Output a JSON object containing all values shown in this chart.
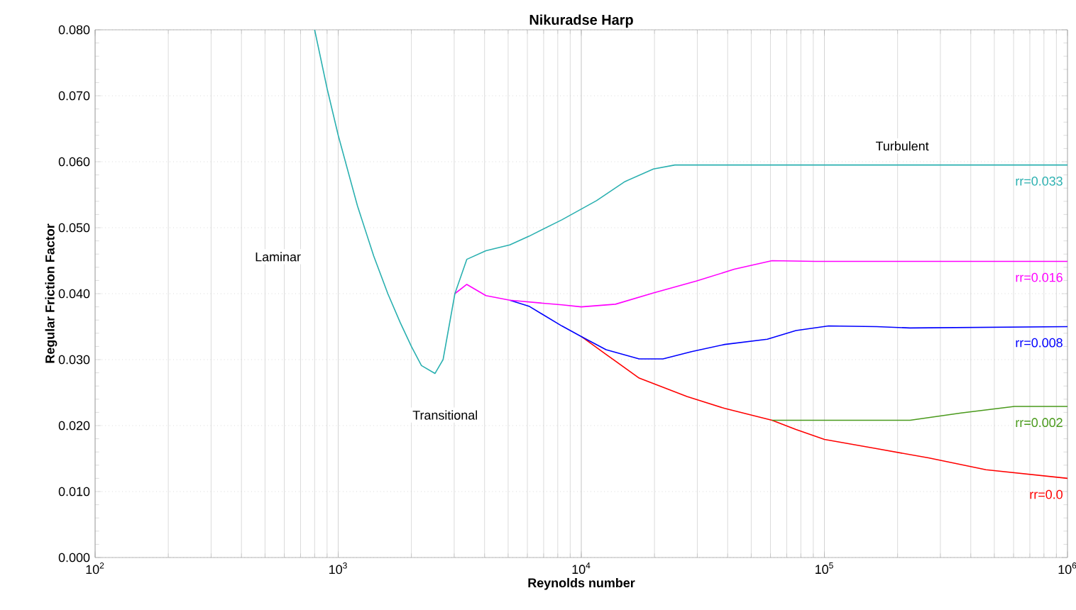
{
  "chart_data": {
    "type": "line",
    "title": "Nikuradse Harp",
    "xlabel": "Reynolds number",
    "ylabel": "Regular Friction Factor",
    "log": "x",
    "grid": true,
    "legend": false,
    "marker": "none",
    "line_style": "solid",
    "xlim": [
      100,
      1000000
    ],
    "xticks": [
      {
        "value": 100,
        "label": "10$^{2}$"
      },
      {
        "value": 1000,
        "label": "10$^{3}$"
      },
      {
        "value": 10000,
        "label": "10$^{4}$"
      },
      {
        "value": 100000,
        "label": "10$^{5}$"
      },
      {
        "value": 1000000,
        "label": "10$^{6}$"
      }
    ],
    "ylim": [
      0,
      0.08
    ],
    "yticks": [
      {
        "value": 0,
        "label": "0.000"
      },
      {
        "value": 0.01,
        "label": "0.010"
      },
      {
        "value": 0.02,
        "label": "0.020"
      },
      {
        "value": 0.03,
        "label": "0.030"
      },
      {
        "value": 0.04,
        "label": "0.040"
      },
      {
        "value": 0.05,
        "label": "0.050"
      },
      {
        "value": 0.06,
        "label": "0.060"
      },
      {
        "value": 0.07,
        "label": "0.070"
      },
      {
        "value": 0.08,
        "label": "0.080"
      }
    ],
    "annotations": [
      "Laminar",
      "Transitional",
      "Turbulent"
    ],
    "series": [
      {
        "name": "rr=0.0",
        "color": "#ff0000",
        "x": [
          10000,
          12640,
          17300,
          27200,
          38900,
          60900,
          76400,
          100000,
          164000,
          268000,
          462000,
          1000000
        ],
        "values": [
          0.0335,
          0.0308,
          0.0272,
          0.0244,
          0.0226,
          0.0208,
          0.0194,
          0.0179,
          0.0165,
          0.0151,
          0.0133,
          0.012
        ]
      },
      {
        "name": "rr=0.002",
        "color": "#4a9a1c",
        "x": [
          60900,
          83500,
          225000,
          365000,
          605000,
          1000000
        ],
        "values": [
          0.0208,
          0.0208,
          0.0208,
          0.0219,
          0.0229,
          0.0229
        ]
      },
      {
        "name": "rr=0.008",
        "color": "#0000ff",
        "x": [
          5080,
          6090,
          8320,
          10000,
          12640,
          17300,
          21680,
          28400,
          38900,
          58200,
          76400,
          104000,
          164000,
          225000,
          1000000
        ],
        "values": [
          0.039,
          0.0381,
          0.0351,
          0.0335,
          0.0315,
          0.0301,
          0.0301,
          0.0312,
          0.0323,
          0.0331,
          0.0344,
          0.0351,
          0.035,
          0.0348,
          0.035
        ]
      },
      {
        "name": "rr=0.016",
        "color": "#ff00ff",
        "x": [
          3020,
          3380,
          4050,
          5080,
          8320,
          10000,
          13820,
          19800,
          29700,
          42600,
          60900,
          91400,
          1000000
        ],
        "values": [
          0.04,
          0.0414,
          0.0397,
          0.039,
          0.0383,
          0.038,
          0.0384,
          0.0401,
          0.0419,
          0.0437,
          0.045,
          0.0449,
          0.0449
        ]
      },
      {
        "name": "rr=0.033",
        "color": "#2ab0b0",
        "x": [
          800,
          900,
          1000,
          1200,
          1400,
          1600,
          1800,
          2000,
          2200,
          2500,
          2700,
          3020,
          3380,
          4050,
          5080,
          6090,
          8320,
          11550,
          15130,
          19800,
          24260,
          1000000
        ],
        "values": [
          0.08,
          0.0711,
          0.064,
          0.0533,
          0.0457,
          0.04,
          0.0356,
          0.032,
          0.0291,
          0.0279,
          0.03,
          0.04,
          0.0452,
          0.0465,
          0.0474,
          0.0487,
          0.0512,
          0.0541,
          0.057,
          0.0589,
          0.0595,
          0.0595
        ]
      }
    ]
  }
}
